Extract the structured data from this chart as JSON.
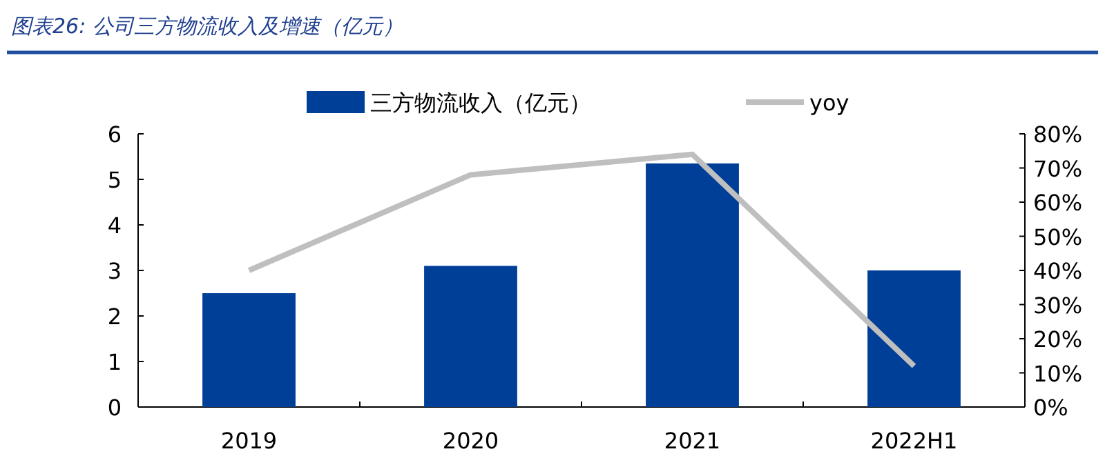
{
  "chart_data": {
    "type": "bar",
    "title": "图表26: 公司三方物流收入及增速（亿元）",
    "categories": [
      "2019",
      "2020",
      "2021",
      "2022H1"
    ],
    "series": [
      {
        "name": "三方物流收入（亿元）",
        "color": "#003f98",
        "values": [
          2.5,
          3.1,
          5.35,
          3.0
        ]
      },
      {
        "name": "yoy",
        "type": "line",
        "axis": "y2",
        "color": "#bfbfbf",
        "values": [
          40,
          68,
          74,
          12
        ]
      }
    ],
    "ylim": [
      0,
      6
    ],
    "yticks": [
      0,
      1,
      2,
      3,
      4,
      5,
      6
    ],
    "y2lim": [
      0,
      80
    ],
    "y2ticks": [
      {
        "value": 0,
        "label": "0%"
      },
      {
        "value": 10,
        "label": "10%"
      },
      {
        "value": 20,
        "label": "20%"
      },
      {
        "value": 30,
        "label": "30%"
      },
      {
        "value": 40,
        "label": "40%"
      },
      {
        "value": 50,
        "label": "50%"
      },
      {
        "value": 60,
        "label": "60%"
      },
      {
        "value": 70,
        "label": "70%"
      },
      {
        "value": 80,
        "label": "80%"
      }
    ],
    "legend": "top",
    "grid": false
  }
}
